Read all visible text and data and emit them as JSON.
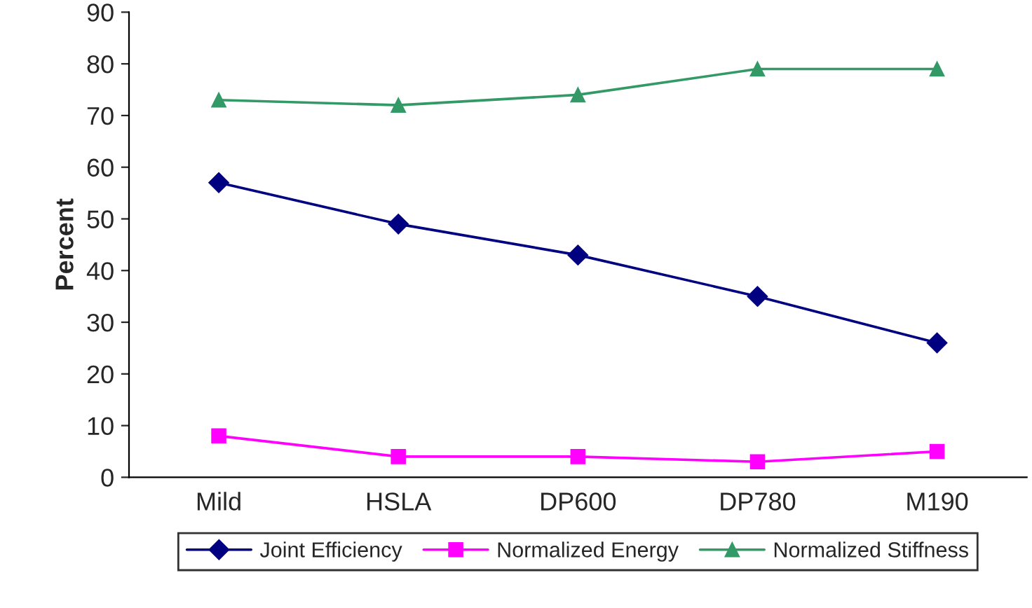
{
  "chart_data": {
    "type": "line",
    "ylabel": "Percent",
    "categories": [
      "Mild",
      "HSLA",
      "DP600",
      "DP780",
      "M190"
    ],
    "series": [
      {
        "name": "Joint Efficiency",
        "color": "#000080",
        "marker": "diamond",
        "values": [
          57,
          49,
          43,
          35,
          26
        ]
      },
      {
        "name": "Normalized Energy",
        "color": "#ff00ff",
        "marker": "square",
        "values": [
          8,
          4,
          4,
          3,
          5
        ]
      },
      {
        "name": "Normalized Stiffness",
        "color": "#339966",
        "marker": "triangle",
        "values": [
          73,
          72,
          74,
          79,
          79
        ]
      }
    ],
    "ylim": [
      0,
      90
    ],
    "yticks": [
      0,
      10,
      20,
      30,
      40,
      50,
      60,
      70,
      80,
      90
    ],
    "grid": false,
    "legend": "bottom",
    "line_style": "solid"
  }
}
